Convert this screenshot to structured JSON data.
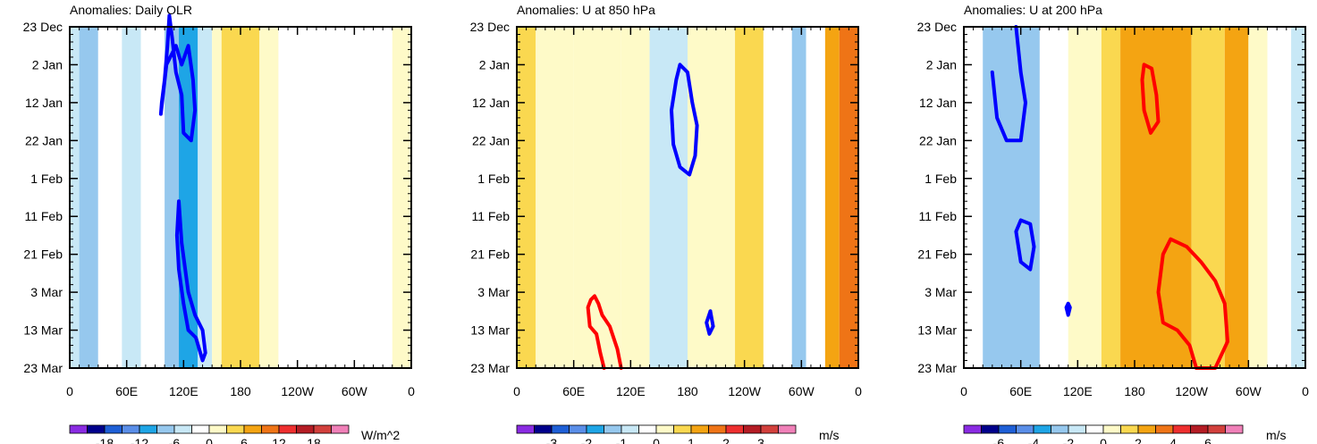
{
  "chart_data": [
    {
      "type": "heatmap",
      "title": "Anomalies: Daily OLR",
      "units": "W/m^2",
      "x_tick_labels": [
        "0",
        "60E",
        "120E",
        "180",
        "120W",
        "60W",
        "0"
      ],
      "y_tick_labels": [
        "23 Dec",
        "2 Jan",
        "12 Jan",
        "22 Jan",
        "1 Feb",
        "11 Feb",
        "21 Feb",
        "3 Mar",
        "13 Mar",
        "23 Mar"
      ],
      "colorbar": {
        "levels": [
          -21,
          -18,
          -15,
          -12,
          -9,
          -6,
          -3,
          0,
          3,
          6,
          9,
          12,
          15,
          18,
          21
        ],
        "labels": [
          "-18",
          "-12",
          "-6",
          "0",
          "6",
          "12",
          "18"
        ]
      },
      "bands": [
        {
          "lon": [
            0,
            10
          ],
          "value": -4
        },
        {
          "lon": [
            10,
            30
          ],
          "value": -7
        },
        {
          "lon": [
            30,
            55
          ],
          "value": -2
        },
        {
          "lon": [
            55,
            75
          ],
          "value": -5
        },
        {
          "lon": [
            75,
            100
          ],
          "value": -3
        },
        {
          "lon": [
            100,
            115
          ],
          "value": -8
        },
        {
          "lon": [
            115,
            135
          ],
          "value": -11
        },
        {
          "lon": [
            135,
            150
          ],
          "value": -6
        },
        {
          "lon": [
            150,
            160
          ],
          "value": 1
        },
        {
          "lon": [
            160,
            200
          ],
          "value": 5
        },
        {
          "lon": [
            200,
            220
          ],
          "value": 2
        },
        {
          "lon": [
            220,
            260
          ],
          "value": -1
        },
        {
          "lon": [
            260,
            290
          ],
          "value": -3
        },
        {
          "lon": [
            290,
            340
          ],
          "value": -2
        },
        {
          "lon": [
            340,
            360
          ],
          "value": 1
        }
      ],
      "contours": [
        {
          "color": "#0000ff",
          "path": [
            [
              96,
              23
            ],
            [
              102,
              10
            ],
            [
              112,
              5
            ],
            [
              118,
              10
            ],
            [
              125,
              5
            ],
            [
              130,
              14
            ],
            [
              132,
              22
            ],
            [
              128,
              30
            ],
            [
              120,
              28
            ],
            [
              118,
              18
            ],
            [
              112,
              12
            ],
            [
              108,
              3
            ],
            [
              105,
              -3
            ],
            [
              103,
              5
            ],
            [
              100,
              14
            ],
            [
              97,
              20
            ],
            [
              96,
              23
            ]
          ]
        },
        {
          "color": "#0000ff",
          "path": [
            [
              115,
              46
            ],
            [
              118,
              57
            ],
            [
              125,
              70
            ],
            [
              132,
              76
            ],
            [
              140,
              80
            ],
            [
              143,
              86
            ],
            [
              140,
              88
            ],
            [
              133,
              82
            ],
            [
              125,
              80
            ],
            [
              120,
              73
            ],
            [
              115,
              64
            ],
            [
              113,
              55
            ],
            [
              115,
              46
            ]
          ]
        }
      ]
    },
    {
      "type": "heatmap",
      "title": "Anomalies: U at 850 hPa",
      "units": "m/s",
      "x_tick_labels": [
        "0",
        "60E",
        "120E",
        "180",
        "120W",
        "60W",
        "0"
      ],
      "y_tick_labels": [
        "23 Dec",
        "2 Jan",
        "12 Jan",
        "22 Jan",
        "1 Feb",
        "11 Feb",
        "21 Feb",
        "3 Mar",
        "13 Mar",
        "23 Mar"
      ],
      "colorbar": {
        "levels": [
          -3.5,
          -3,
          -2.5,
          -2,
          -1.5,
          -1,
          -0.5,
          0,
          0.5,
          1,
          1.5,
          2,
          2.5,
          3,
          3.5
        ],
        "labels": [
          "-3",
          "-2",
          "-1",
          "0",
          "1",
          "2",
          "3"
        ]
      },
      "bands": [
        {
          "lon": [
            0,
            20
          ],
          "value": 0.6
        },
        {
          "lon": [
            20,
            60
          ],
          "value": 0.4
        },
        {
          "lon": [
            60,
            110
          ],
          "value": 0.3
        },
        {
          "lon": [
            110,
            140
          ],
          "value": 0.2
        },
        {
          "lon": [
            140,
            155
          ],
          "value": -0.9
        },
        {
          "lon": [
            155,
            180
          ],
          "value": -0.6
        },
        {
          "lon": [
            180,
            230
          ],
          "value": 0.3
        },
        {
          "lon": [
            230,
            260
          ],
          "value": 0.6
        },
        {
          "lon": [
            260,
            290
          ],
          "value": -0.4
        },
        {
          "lon": [
            290,
            305
          ],
          "value": -1.1
        },
        {
          "lon": [
            305,
            325
          ],
          "value": -0.3
        },
        {
          "lon": [
            325,
            340
          ],
          "value": 1.1
        },
        {
          "lon": [
            340,
            360
          ],
          "value": 1.7
        }
      ],
      "contours": [
        {
          "color": "#0000ff",
          "path": [
            [
              168,
              14
            ],
            [
              163,
              22
            ],
            [
              165,
              31
            ],
            [
              172,
              37
            ],
            [
              182,
              39
            ],
            [
              188,
              34
            ],
            [
              190,
              26
            ],
            [
              185,
              20
            ],
            [
              180,
              12
            ],
            [
              172,
              10
            ],
            [
              168,
              14
            ]
          ]
        },
        {
          "color": "#0000ff",
          "path": [
            [
              204,
              75
            ],
            [
              200,
              78
            ],
            [
              203,
              81
            ],
            [
              207,
              79
            ],
            [
              204,
              75
            ]
          ]
        },
        {
          "color": "#ff0000",
          "path": [
            [
              110,
              90
            ],
            [
              106,
              85
            ],
            [
              98,
              79
            ],
            [
              90,
              76
            ],
            [
              86,
              73
            ],
            [
              82,
              71
            ],
            [
              78,
              72
            ],
            [
              75,
              74
            ],
            [
              77,
              79
            ],
            [
              84,
              81
            ],
            [
              88,
              86
            ],
            [
              92,
              90
            ]
          ]
        }
      ]
    },
    {
      "type": "heatmap",
      "title": "Anomalies: U at 200 hPa",
      "units": "m/s",
      "x_tick_labels": [
        "0",
        "60E",
        "120E",
        "180",
        "120W",
        "60W",
        "0"
      ],
      "y_tick_labels": [
        "23 Dec",
        "2 Jan",
        "12 Jan",
        "22 Jan",
        "1 Feb",
        "11 Feb",
        "21 Feb",
        "3 Mar",
        "13 Mar",
        "23 Mar"
      ],
      "colorbar": {
        "levels": [
          -7,
          -6,
          -5,
          -4,
          -3,
          -2,
          -1,
          0,
          1,
          2,
          3,
          4,
          5,
          6,
          7
        ],
        "labels": [
          "-6",
          "-4",
          "-2",
          "0",
          "2",
          "4",
          "6"
        ]
      },
      "bands": [
        {
          "lon": [
            0,
            20
          ],
          "value": -0.8
        },
        {
          "lon": [
            20,
            80
          ],
          "value": -2.2
        },
        {
          "lon": [
            80,
            110
          ],
          "value": -0.8
        },
        {
          "lon": [
            110,
            145
          ],
          "value": 0.3
        },
        {
          "lon": [
            145,
            165
          ],
          "value": 1.3
        },
        {
          "lon": [
            165,
            240
          ],
          "value": 2.5
        },
        {
          "lon": [
            240,
            275
          ],
          "value": 1.6
        },
        {
          "lon": [
            275,
            300
          ],
          "value": 2.2
        },
        {
          "lon": [
            300,
            320
          ],
          "value": 0.6
        },
        {
          "lon": [
            320,
            345
          ],
          "value": -0.6
        },
        {
          "lon": [
            345,
            360
          ],
          "value": -1.8
        }
      ],
      "contours": [
        {
          "color": "#0000ff",
          "path": [
            [
              30,
              12
            ],
            [
              35,
              24
            ],
            [
              45,
              30
            ],
            [
              60,
              30
            ],
            [
              65,
              20
            ],
            [
              60,
              12
            ],
            [
              55,
              0
            ]
          ]
        },
        {
          "color": "#0000ff",
          "path": [
            [
              60,
              51
            ],
            [
              55,
              54
            ],
            [
              60,
              62
            ],
            [
              70,
              64
            ],
            [
              74,
              58
            ],
            [
              70,
              52
            ],
            [
              60,
              51
            ]
          ]
        },
        {
          "color": "#0000ff",
          "path": [
            [
              110,
              73
            ],
            [
              108,
              74
            ],
            [
              110,
              76
            ],
            [
              112,
              74
            ],
            [
              110,
              73
            ]
          ]
        },
        {
          "color": "#ff0000",
          "path": [
            [
              190,
              10
            ],
            [
              188,
              14
            ],
            [
              190,
              22
            ],
            [
              197,
              28
            ],
            [
              205,
              25
            ],
            [
              203,
              18
            ],
            [
              198,
              11
            ],
            [
              190,
              10
            ]
          ]
        },
        {
          "color": "#ff0000",
          "path": [
            [
              218,
              56
            ],
            [
              210,
              60
            ],
            [
              205,
              70
            ],
            [
              210,
              78
            ],
            [
              225,
              80
            ],
            [
              238,
              84
            ],
            [
              245,
              90
            ],
            [
              265,
              90
            ],
            [
              278,
              83
            ],
            [
              275,
              73
            ],
            [
              265,
              67
            ],
            [
              250,
              62
            ],
            [
              235,
              58
            ],
            [
              218,
              56
            ]
          ]
        }
      ]
    }
  ]
}
